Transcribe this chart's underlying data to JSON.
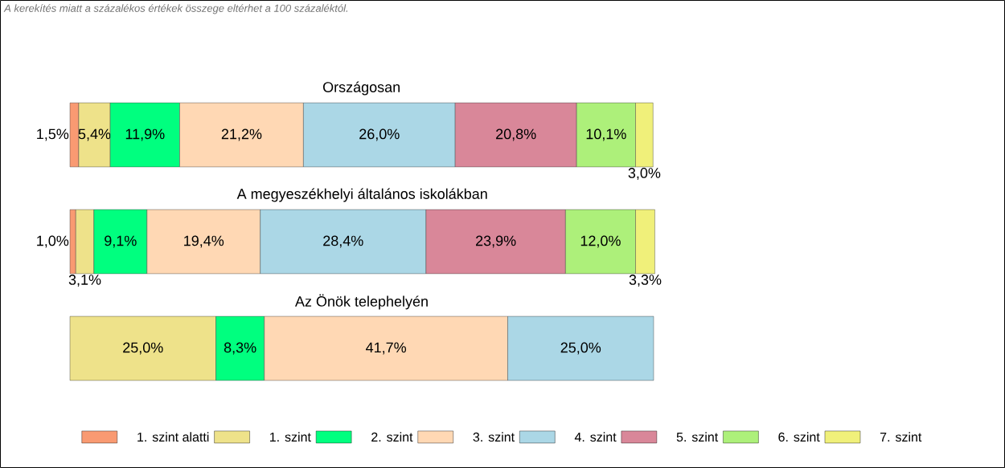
{
  "chart_data": {
    "type": "bar",
    "orientation": "horizontal",
    "stacked": true,
    "legend": "bottom",
    "annotations": [
      "A kerekítés miatt a  százalékos értékek összege eltérhet a 100 százaléktól."
    ],
    "categories": [
      "Országosan",
      "A megyeszékhelyi általános iskolákban",
      "Az Önök telephelyén"
    ],
    "series": [
      {
        "name": "1. szint alatti",
        "color": "#f99a72",
        "values": [
          1.5,
          1.0,
          null
        ],
        "value_labels": [
          "1,5%",
          "1,0%",
          null
        ]
      },
      {
        "name": "1. szint",
        "color": "#eee28a",
        "values": [
          5.4,
          3.1,
          25.0
        ],
        "value_labels": [
          "5,4%",
          "3,1%",
          "25,0%"
        ]
      },
      {
        "name": "2. szint",
        "color": "#00ff7f",
        "values": [
          11.9,
          9.1,
          8.3
        ],
        "value_labels": [
          "11,9%",
          "9,1%",
          "8,3%"
        ]
      },
      {
        "name": "3. szint",
        "color": "#ffd8b4",
        "values": [
          21.2,
          19.4,
          41.7
        ],
        "value_labels": [
          "21,2%",
          "19,4%",
          "41,7%"
        ]
      },
      {
        "name": "4. szint",
        "color": "#abd7e6",
        "values": [
          26.0,
          28.4,
          25.0
        ],
        "value_labels": [
          "26,0%",
          "28,4%",
          "25,0%"
        ]
      },
      {
        "name": "5. szint",
        "color": "#d98799",
        "values": [
          20.8,
          23.9,
          null
        ],
        "value_labels": [
          "20,8%",
          "23,9%",
          null
        ]
      },
      {
        "name": "6. szint",
        "color": "#adf07a",
        "values": [
          10.1,
          12.0,
          null
        ],
        "value_labels": [
          "10,1%",
          "12,0%",
          null
        ]
      },
      {
        "name": "7. szint",
        "color": "#f0f07a",
        "values": [
          3.0,
          3.3,
          null
        ],
        "value_labels": [
          "3,0%",
          "3,3%",
          null
        ]
      }
    ]
  }
}
